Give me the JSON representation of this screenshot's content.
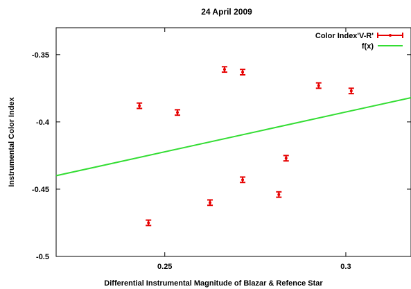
{
  "chart_data": {
    "type": "scatter",
    "title": "24 April 2009",
    "xlabel": "Differential Instrumental Magnitude of Blazar & Refence Star",
    "ylabel": "Instrumental Color Index",
    "xlim": [
      0.22,
      0.318
    ],
    "ylim": [
      -0.5,
      -0.33
    ],
    "x_ticks": [
      0.25,
      0.3
    ],
    "x_tick_labels": [
      "0.25",
      "0.3"
    ],
    "y_ticks": [
      -0.35,
      -0.4,
      -0.45,
      -0.5
    ],
    "y_tick_labels": [
      "-0.35",
      "-0.4",
      "-0.45",
      "-0.5"
    ],
    "grid": false,
    "legend_position": "top-right",
    "series": [
      {
        "name": "Color Index'V-R'",
        "style": "points-with-errorbars",
        "color": "#e60000",
        "points": [
          {
            "x": 0.243,
            "y": -0.388,
            "err": 0.002
          },
          {
            "x": 0.2455,
            "y": -0.475,
            "err": 0.002
          },
          {
            "x": 0.2535,
            "y": -0.393,
            "err": 0.002
          },
          {
            "x": 0.2625,
            "y": -0.46,
            "err": 0.002
          },
          {
            "x": 0.2665,
            "y": -0.361,
            "err": 0.002
          },
          {
            "x": 0.2715,
            "y": -0.363,
            "err": 0.002
          },
          {
            "x": 0.2715,
            "y": -0.443,
            "err": 0.002
          },
          {
            "x": 0.2815,
            "y": -0.454,
            "err": 0.002
          },
          {
            "x": 0.2835,
            "y": -0.427,
            "err": 0.002
          },
          {
            "x": 0.2925,
            "y": -0.373,
            "err": 0.002
          },
          {
            "x": 0.3015,
            "y": -0.377,
            "err": 0.002
          }
        ]
      },
      {
        "name": "f(x)",
        "style": "line",
        "color": "#33dd33",
        "points": [
          {
            "x": 0.22,
            "y": -0.44
          },
          {
            "x": 0.318,
            "y": -0.382
          }
        ]
      }
    ]
  }
}
